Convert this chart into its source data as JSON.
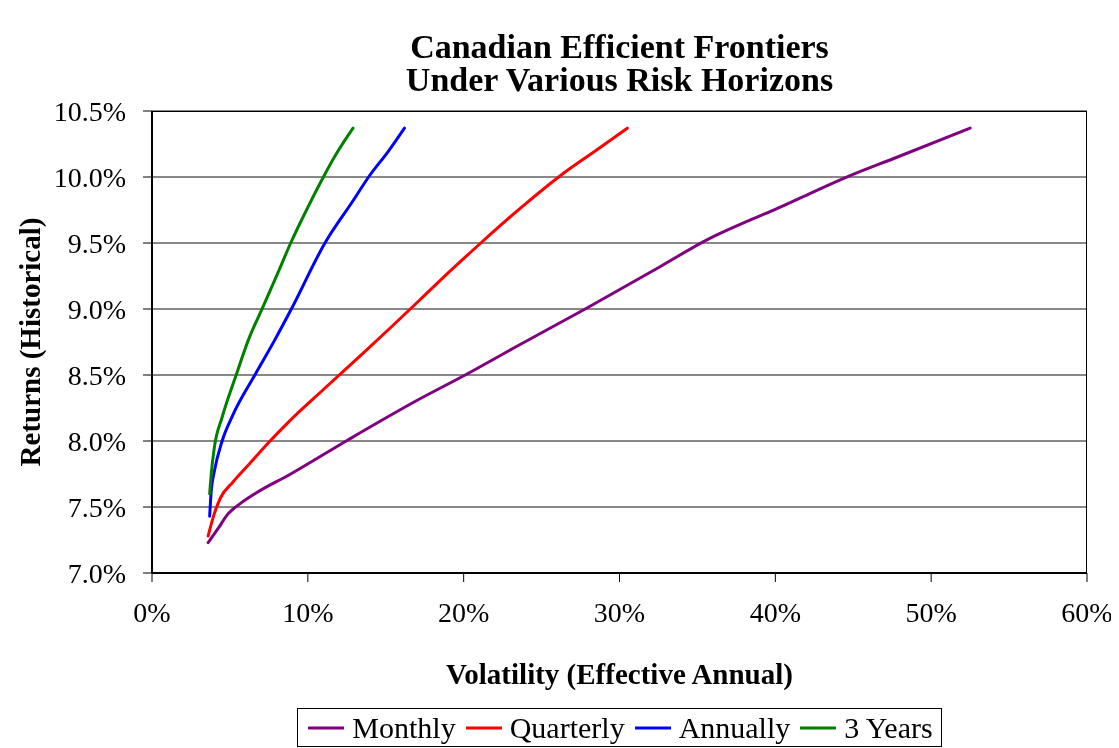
{
  "chart_data": {
    "type": "line",
    "title": "Canadian Efficient Frontiers\nUnder Various Risk Horizons",
    "xlabel": "Volatility (Effective Annual)",
    "ylabel": "Returns (Historical)",
    "xlim": [
      0,
      60
    ],
    "ylim": [
      7,
      10.5
    ],
    "xticks": [
      {
        "value": 0,
        "label": "0%"
      },
      {
        "value": 10,
        "label": "10%"
      },
      {
        "value": 20,
        "label": "20%"
      },
      {
        "value": 30,
        "label": "30%"
      },
      {
        "value": 40,
        "label": "40%"
      },
      {
        "value": 50,
        "label": "50%"
      },
      {
        "value": 60,
        "label": "60%"
      }
    ],
    "yticks": [
      {
        "value": 7,
        "label": "7.0%"
      },
      {
        "value": 7.5,
        "label": "7.5%"
      },
      {
        "value": 8,
        "label": "8.0%"
      },
      {
        "value": 8.5,
        "label": "8.5%"
      },
      {
        "value": 9,
        "label": "9.0%"
      },
      {
        "value": 9.5,
        "label": "9.5%"
      },
      {
        "value": 10,
        "label": "10.0%"
      },
      {
        "value": 10.5,
        "label": "10.5%"
      }
    ],
    "grid": "y",
    "legend": "bottom",
    "marker": "none",
    "line_style": "solid",
    "series": [
      {
        "name": "Monthly",
        "color": "#800080",
        "x": [
          3.6,
          4.2,
          4.9,
          5.6,
          6.6,
          8.9,
          12.6,
          17.2,
          20.1,
          23.3,
          27.8,
          32.6,
          35.7,
          38.3,
          39.7,
          42.5,
          44.8,
          47.6,
          52.5
        ],
        "values": [
          7.23,
          7.33,
          7.45,
          7.52,
          7.6,
          7.75,
          8.01,
          8.32,
          8.5,
          8.71,
          9.0,
          9.32,
          9.53,
          9.67,
          9.74,
          9.89,
          10.01,
          10.14,
          10.37
        ]
      },
      {
        "name": "Quarterly",
        "color": "#ff0000",
        "x": [
          3.6,
          4.0,
          4.4,
          5.2,
          6.2,
          7.5,
          8.9,
          11.0,
          13.5,
          17.2,
          18.7,
          21.1,
          23.7,
          26.2,
          28.6,
          30.5
        ],
        "values": [
          7.28,
          7.45,
          7.57,
          7.69,
          7.82,
          7.99,
          8.16,
          8.39,
          8.66,
          9.07,
          9.24,
          9.5,
          9.77,
          10.01,
          10.21,
          10.37
        ]
      },
      {
        "name": "Annually",
        "color": "#0000ff",
        "x": [
          3.7,
          3.8,
          4.0,
          4.5,
          5.2,
          6.6,
          7.9,
          8.9,
          11.1,
          12.9,
          13.9,
          15.2,
          16.2
        ],
        "values": [
          7.43,
          7.62,
          7.77,
          8.0,
          8.2,
          8.5,
          8.77,
          8.99,
          9.5,
          9.82,
          10.0,
          10.2,
          10.37
        ]
      },
      {
        "name": "3 Years",
        "color": "#008000",
        "x": [
          3.7,
          3.8,
          4.0,
          4.5,
          5.4,
          6.2,
          7.1,
          8.1,
          8.9,
          10.0,
          11.0,
          11.8,
          12.9
        ],
        "values": [
          7.6,
          7.75,
          7.95,
          8.18,
          8.5,
          8.77,
          9.01,
          9.28,
          9.5,
          9.77,
          10.0,
          10.17,
          10.37
        ]
      }
    ]
  }
}
